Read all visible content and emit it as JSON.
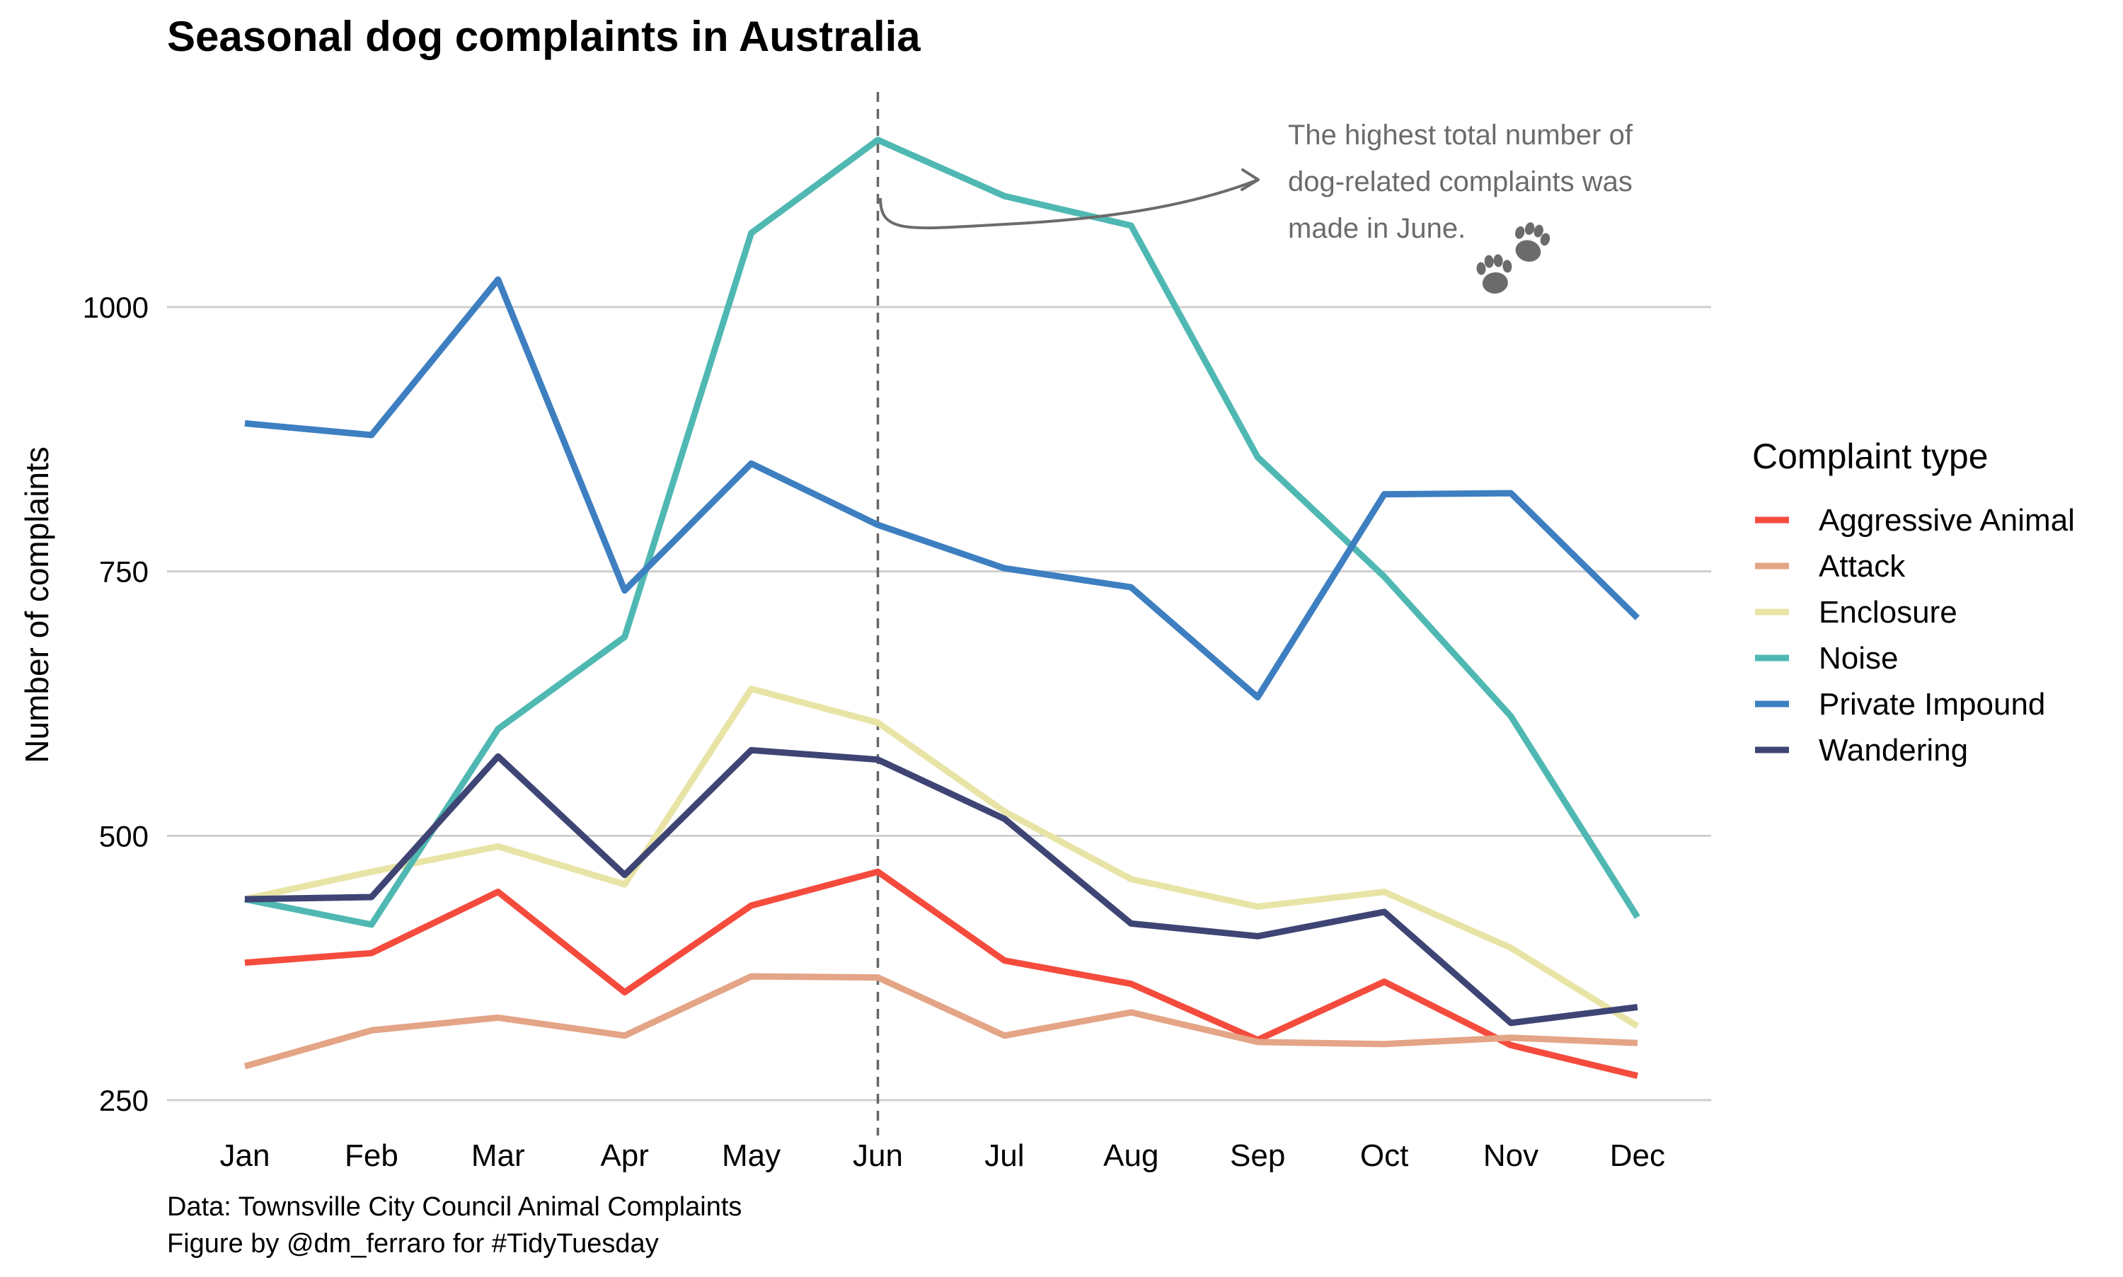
{
  "chart_data": {
    "type": "line",
    "title": "Seasonal dog complaints in Australia",
    "ylabel": "Number of complaints",
    "xlabel": "",
    "categories": [
      "Jan",
      "Feb",
      "Mar",
      "Apr",
      "May",
      "Jun",
      "Jul",
      "Aug",
      "Sep",
      "Oct",
      "Nov",
      "Dec"
    ],
    "ylim": [
      250,
      1160
    ],
    "yticks": [
      250,
      500,
      750,
      1000
    ],
    "grid": "horizontal",
    "legend": {
      "title": "Complaint type",
      "position": "right"
    },
    "series": [
      {
        "name": "Aggressive Animal",
        "color": "#F44B3D",
        "values": [
          380,
          389,
          447,
          352,
          434,
          466,
          382,
          360,
          307,
          362,
          302,
          273
        ]
      },
      {
        "name": "Attack",
        "color": "#E4A486",
        "values": [
          282,
          316,
          328,
          311,
          367,
          366,
          311,
          333,
          305,
          303,
          309,
          304
        ]
      },
      {
        "name": "Enclosure",
        "color": "#E8E4A6",
        "values": [
          440,
          466,
          490,
          454,
          639,
          607,
          523,
          459,
          433,
          447,
          394,
          320
        ]
      },
      {
        "name": "Noise",
        "color": "#4FB8B2",
        "values": [
          440,
          416,
          601,
          688,
          1070,
          1158,
          1105,
          1077,
          858,
          745,
          613,
          423
        ]
      },
      {
        "name": "Private Impound",
        "color": "#3D7FC0",
        "values": [
          890,
          879,
          1026,
          732,
          852,
          794,
          753,
          735,
          631,
          823,
          824,
          706
        ]
      },
      {
        "name": "Wandering",
        "color": "#3E4574",
        "values": [
          440,
          442,
          575,
          463,
          581,
          572,
          516,
          417,
          405,
          428,
          323,
          338
        ]
      }
    ],
    "reference_line": {
      "x": "Jun"
    },
    "annotation": {
      "lines": [
        "The highest total number of",
        "dog-related complaints was",
        "made in June."
      ],
      "icon": "paw-print-icon",
      "color": "#6b6b6b"
    },
    "caption": [
      "Data: Townsville City Council Animal Complaints",
      "Figure by @dm_ferraro for #TidyTuesday"
    ]
  }
}
